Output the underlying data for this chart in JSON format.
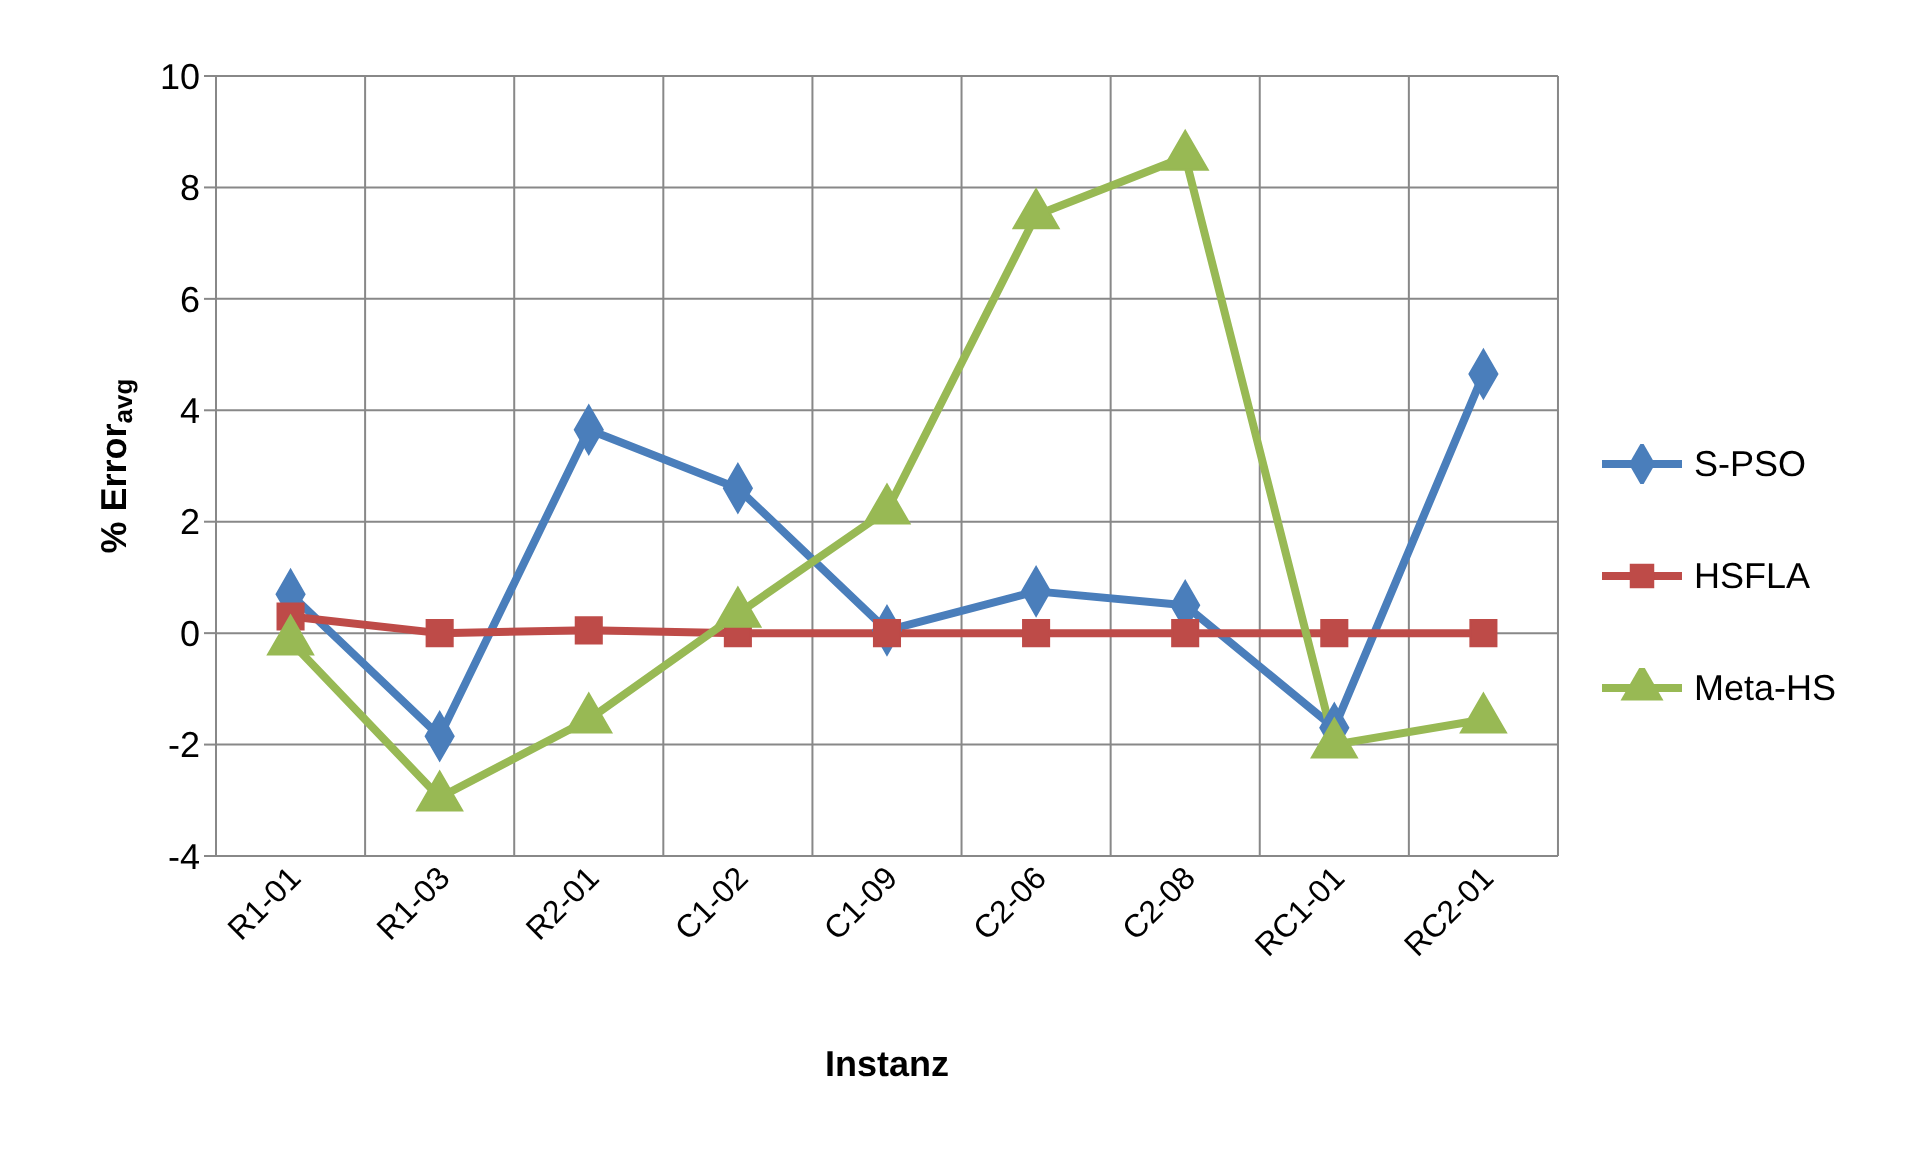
{
  "chart_data": {
    "type": "line",
    "xlabel": "Instanz",
    "ylabel": "% Error$_{avg}$",
    "categories": [
      "R1-01",
      "R1-03",
      "R2-01",
      "C1-02",
      "C1-09",
      "C2-06",
      "C2-08",
      "RC1-01",
      "RC2-01"
    ],
    "series": [
      {
        "name": "S-PSO",
        "color": "#4a7ebb",
        "marker": "diamond",
        "values": [
          0.7,
          -1.85,
          3.65,
          2.6,
          0.05,
          0.75,
          0.5,
          -1.7,
          4.65
        ]
      },
      {
        "name": "HSFLA",
        "color": "#be4b48",
        "marker": "square",
        "values": [
          0.3,
          0,
          0.05,
          0,
          0,
          0,
          0,
          0,
          0
        ]
      },
      {
        "name": "Meta-HS",
        "color": "#98b954",
        "marker": "triangle",
        "values": [
          -0.15,
          -2.95,
          -1.55,
          0.35,
          2.2,
          7.5,
          8.55,
          -2.0,
          -1.55
        ]
      }
    ],
    "ylim": [
      -4,
      10
    ],
    "yticks": [
      -4,
      -2,
      0,
      2,
      4,
      6,
      8,
      10
    ],
    "grid": true,
    "legend": "right"
  }
}
